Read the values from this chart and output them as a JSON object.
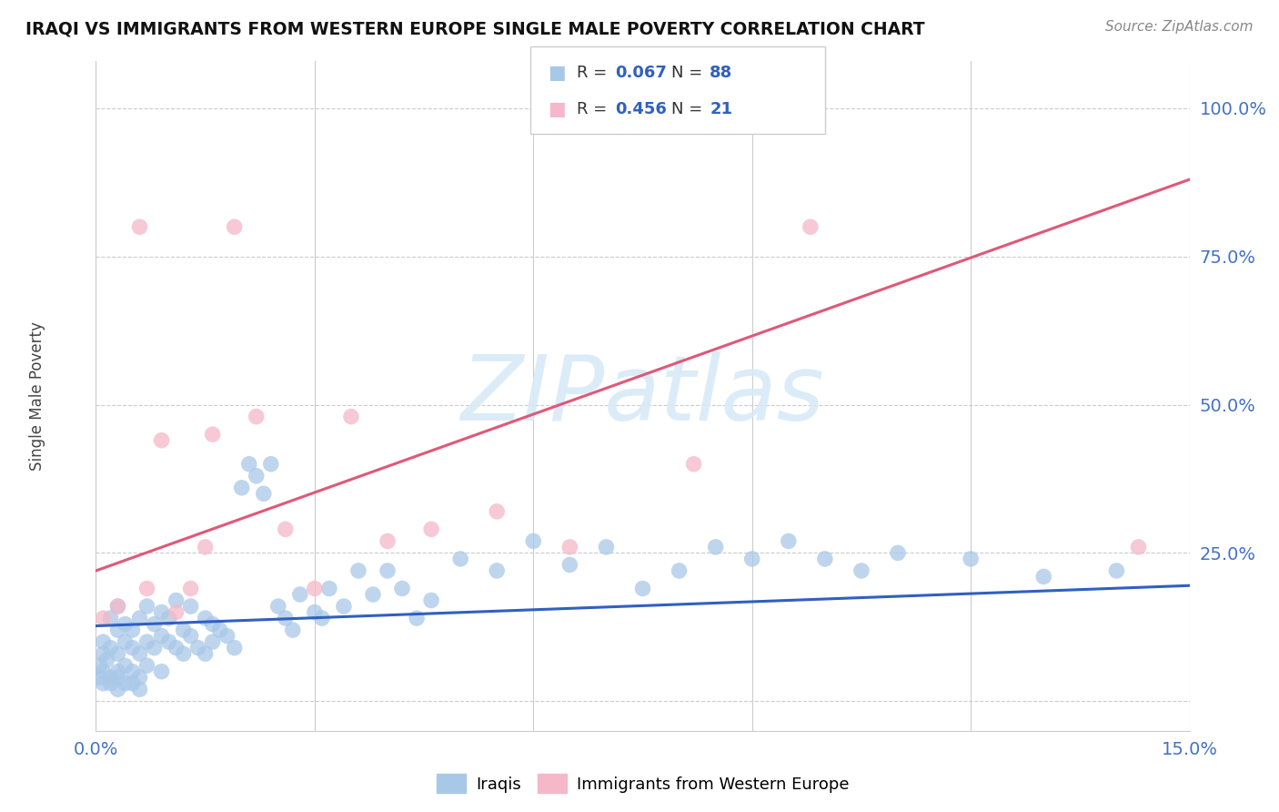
{
  "title": "IRAQI VS IMMIGRANTS FROM WESTERN EUROPE SINGLE MALE POVERTY CORRELATION CHART",
  "source": "Source: ZipAtlas.com",
  "ylabel": "Single Male Poverty",
  "xlim": [
    0.0,
    0.15
  ],
  "ylim": [
    -0.05,
    1.08
  ],
  "xtick_vals": [
    0.0,
    0.03,
    0.06,
    0.09,
    0.12,
    0.15
  ],
  "xtick_labels": [
    "0.0%",
    "",
    "",
    "",
    "",
    "15.0%"
  ],
  "ytick_vals": [
    0.0,
    0.25,
    0.5,
    0.75,
    1.0
  ],
  "ytick_labels": [
    "",
    "25.0%",
    "50.0%",
    "75.0%",
    "100.0%"
  ],
  "iraqis_scatter_color": "#a8c8e8",
  "immigrants_scatter_color": "#f4b8c8",
  "iraqis_line_color": "#3060c0",
  "immigrants_line_color": "#e05878",
  "grid_color": "#cccccc",
  "tick_color": "#4472c4",
  "title_color": "#111111",
  "source_color": "#888888",
  "watermark_color": "#d8eaf8",
  "legend_R1": "0.067",
  "legend_N1": "88",
  "legend_R2": "0.456",
  "legend_N2": "21",
  "legend_label1": "Iraqis",
  "legend_label2": "Immigrants from Western Europe",
  "iraq_trend": [
    0.0,
    0.127,
    0.15,
    0.195
  ],
  "west_trend": [
    0.0,
    0.22,
    0.15,
    0.88
  ],
  "iraq_x": [
    0.0005,
    0.001,
    0.001,
    0.001,
    0.0015,
    0.002,
    0.002,
    0.002,
    0.003,
    0.003,
    0.003,
    0.003,
    0.004,
    0.004,
    0.004,
    0.005,
    0.005,
    0.005,
    0.006,
    0.006,
    0.006,
    0.007,
    0.007,
    0.007,
    0.008,
    0.008,
    0.009,
    0.009,
    0.009,
    0.01,
    0.01,
    0.011,
    0.011,
    0.012,
    0.012,
    0.013,
    0.013,
    0.014,
    0.015,
    0.015,
    0.016,
    0.016,
    0.017,
    0.018,
    0.019,
    0.02,
    0.021,
    0.022,
    0.023,
    0.024,
    0.025,
    0.026,
    0.027,
    0.028,
    0.03,
    0.031,
    0.032,
    0.034,
    0.036,
    0.038,
    0.04,
    0.042,
    0.044,
    0.046,
    0.05,
    0.055,
    0.06,
    0.065,
    0.07,
    0.075,
    0.08,
    0.085,
    0.09,
    0.095,
    0.1,
    0.105,
    0.11,
    0.12,
    0.13,
    0.14,
    0.0005,
    0.001,
    0.002,
    0.003,
    0.003,
    0.004,
    0.005,
    0.006
  ],
  "iraq_y": [
    0.06,
    0.1,
    0.05,
    0.08,
    0.07,
    0.09,
    0.14,
    0.04,
    0.08,
    0.12,
    0.05,
    0.16,
    0.1,
    0.06,
    0.13,
    0.09,
    0.12,
    0.05,
    0.08,
    0.14,
    0.04,
    0.1,
    0.16,
    0.06,
    0.09,
    0.13,
    0.11,
    0.15,
    0.05,
    0.1,
    0.14,
    0.09,
    0.17,
    0.08,
    0.12,
    0.11,
    0.16,
    0.09,
    0.08,
    0.14,
    0.1,
    0.13,
    0.12,
    0.11,
    0.09,
    0.36,
    0.4,
    0.38,
    0.35,
    0.4,
    0.16,
    0.14,
    0.12,
    0.18,
    0.15,
    0.14,
    0.19,
    0.16,
    0.22,
    0.18,
    0.22,
    0.19,
    0.14,
    0.17,
    0.24,
    0.22,
    0.27,
    0.23,
    0.26,
    0.19,
    0.22,
    0.26,
    0.24,
    0.27,
    0.24,
    0.22,
    0.25,
    0.24,
    0.21,
    0.22,
    0.04,
    0.03,
    0.03,
    0.04,
    0.02,
    0.03,
    0.03,
    0.02
  ],
  "west_x": [
    0.001,
    0.003,
    0.006,
    0.007,
    0.009,
    0.011,
    0.013,
    0.015,
    0.016,
    0.019,
    0.022,
    0.026,
    0.03,
    0.035,
    0.04,
    0.046,
    0.055,
    0.065,
    0.082,
    0.098,
    0.143
  ],
  "west_y": [
    0.14,
    0.16,
    0.8,
    0.19,
    0.44,
    0.15,
    0.19,
    0.26,
    0.45,
    0.8,
    0.48,
    0.29,
    0.19,
    0.48,
    0.27,
    0.29,
    0.32,
    0.26,
    0.4,
    0.8,
    0.26
  ]
}
